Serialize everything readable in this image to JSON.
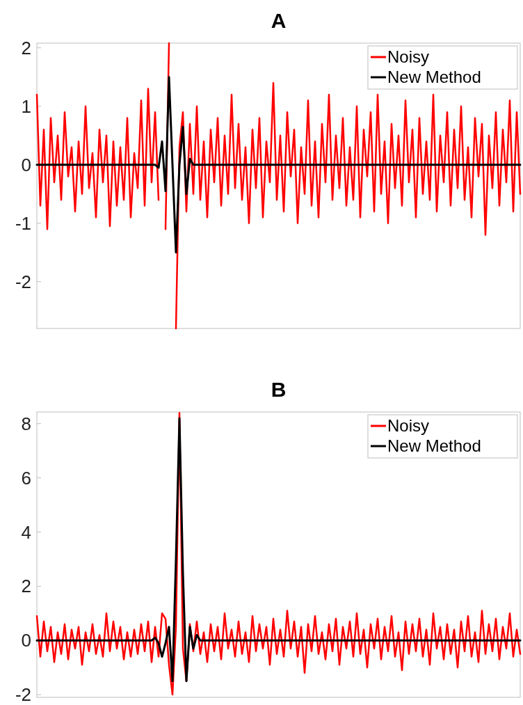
{
  "chart_data": [
    {
      "type": "line",
      "title": "A",
      "categories": [
        null,
        null,
        null,
        null,
        null,
        null,
        null,
        null,
        null,
        null,
        null,
        null,
        null,
        null,
        null,
        null,
        null,
        null,
        null,
        null,
        null,
        null,
        null,
        null,
        null,
        null,
        null,
        null,
        null,
        null,
        null,
        null,
        null,
        null,
        null,
        null,
        null,
        null,
        null,
        null,
        null,
        null,
        null,
        null,
        null,
        null,
        null,
        null,
        null,
        null,
        null,
        null,
        null,
        null,
        null,
        null,
        null,
        null,
        null,
        null,
        null,
        null,
        null,
        null,
        null,
        null,
        null,
        null,
        null,
        null,
        null,
        null,
        null,
        null,
        null,
        null,
        null,
        null,
        null,
        null,
        null,
        null,
        null,
        null,
        null,
        null,
        null,
        null,
        null,
        null,
        null,
        null,
        null,
        null,
        null,
        null,
        null,
        null,
        null,
        null,
        null,
        null,
        null,
        null,
        null,
        null,
        null,
        null,
        null,
        null,
        null,
        null,
        null,
        null,
        null,
        null,
        null,
        null,
        null,
        null,
        null,
        null,
        null,
        null,
        null,
        null,
        null,
        null,
        null,
        null,
        null,
        null,
        null,
        null,
        null,
        null,
        null,
        null,
        null,
        null
      ],
      "series": [
        {
          "name": "Noisy",
          "color": "#ff0000",
          "values": [
            1.2,
            -0.7,
            0.6,
            -1.1,
            0.8,
            -0.3,
            0.5,
            -0.6,
            0.9,
            -0.2,
            0.3,
            -0.8,
            0.4,
            -0.5,
            1.0,
            -0.4,
            0.2,
            -0.9,
            0.6,
            -0.3,
            0.5,
            -1.05,
            0.4,
            -0.7,
            0.3,
            -0.6,
            0.8,
            -0.9,
            0.2,
            -0.4,
            1.1,
            -0.7,
            1.3,
            -0.3,
            0.9,
            -0.6,
            null,
            -1.1,
            2.08,
            null,
            -2.8,
            0.3,
            0.9,
            -0.8,
            0.7,
            -0.5,
            1.0,
            -0.6,
            0.4,
            -0.9,
            0.6,
            -0.3,
            0.8,
            -0.7,
            0.5,
            -0.5,
            1.2,
            -0.4,
            0.7,
            -0.6,
            0.3,
            -1.0,
            0.6,
            -0.4,
            0.8,
            -0.9,
            0.4,
            -0.3,
            1.4,
            -0.6,
            0.5,
            -0.8,
            0.9,
            -0.2,
            0.6,
            -1.0,
            0.3,
            -0.5,
            1.1,
            -0.7,
            0.4,
            -0.9,
            0.7,
            -0.3,
            1.2,
            -0.6,
            0.5,
            -0.4,
            0.8,
            -0.7,
            0.3,
            -0.6,
            1.0,
            -0.9,
            0.6,
            -0.2,
            0.9,
            -0.8,
            1.2,
            -0.5,
            0.4,
            -1.0,
            0.7,
            -0.4,
            0.5,
            -0.7,
            1.1,
            -0.3,
            0.6,
            -0.9,
            0.8,
            -0.5,
            0.4,
            -0.6,
            1.2,
            -0.8,
            0.5,
            -0.3,
            0.9,
            -0.7,
            0.6,
            -0.4,
            1.0,
            -0.6,
            0.3,
            -0.9,
            0.8,
            -0.2,
            0.7,
            -1.2,
            0.5,
            -0.4,
            0.9,
            -0.7,
            0.6,
            -0.3,
            1.1,
            -0.8,
            0.9,
            -0.5
          ]
        },
        {
          "name": "New Method",
          "color": "#000000",
          "values": [
            0,
            0,
            0,
            0,
            0,
            0,
            0,
            0,
            0,
            0,
            0,
            0,
            0,
            0,
            0,
            0,
            0,
            0,
            0,
            0,
            0,
            0,
            0,
            0,
            0,
            0,
            0,
            0,
            0,
            0,
            0,
            0,
            0,
            0,
            0,
            -0.05,
            0.4,
            -0.45,
            1.5,
            0,
            -1.5,
            0,
            0.65,
            -0.5,
            0.1,
            0,
            0,
            0,
            0,
            0,
            0,
            0,
            0,
            0,
            0,
            0,
            0,
            0,
            0,
            0,
            0,
            0,
            0,
            0,
            0,
            0,
            0,
            0,
            0,
            0,
            0,
            0,
            0,
            0,
            0,
            0,
            0,
            0,
            0,
            0,
            0,
            0,
            0,
            0,
            0,
            0,
            0,
            0,
            0,
            0,
            0,
            0,
            0,
            0,
            0,
            0,
            0,
            0,
            0,
            0,
            0,
            0,
            0,
            0,
            0,
            0,
            0,
            0,
            0,
            0,
            0,
            0,
            0,
            0,
            0,
            0,
            0,
            0,
            0,
            0,
            0,
            0,
            0,
            0,
            0,
            0,
            0,
            0,
            0,
            0,
            0,
            0,
            0,
            0,
            0,
            0,
            0,
            0,
            0,
            0
          ]
        }
      ],
      "ylim": [
        -2.8,
        2.08
      ],
      "yticks": [
        -2,
        -1,
        0,
        1,
        2
      ],
      "tick_labels": "y",
      "legend": "top right"
    },
    {
      "type": "line",
      "title": "B",
      "categories": [
        null,
        null,
        null,
        null,
        null,
        null,
        null,
        null,
        null,
        null,
        null,
        null,
        null,
        null,
        null,
        null,
        null,
        null,
        null,
        null,
        null,
        null,
        null,
        null,
        null,
        null,
        null,
        null,
        null,
        null,
        null,
        null,
        null,
        null,
        null,
        null,
        null,
        null,
        null,
        null,
        null,
        null,
        null,
        null,
        null,
        null,
        null,
        null,
        null,
        null,
        null,
        null,
        null,
        null,
        null,
        null,
        null,
        null,
        null,
        null,
        null,
        null,
        null,
        null,
        null,
        null,
        null,
        null,
        null,
        null,
        null,
        null,
        null,
        null,
        null,
        null,
        null,
        null,
        null,
        null,
        null,
        null,
        null,
        null,
        null,
        null,
        null,
        null,
        null,
        null,
        null,
        null,
        null,
        null,
        null,
        null,
        null,
        null,
        null,
        null,
        null,
        null,
        null,
        null,
        null,
        null,
        null,
        null,
        null,
        null,
        null,
        null,
        null,
        null,
        null,
        null,
        null,
        null,
        null,
        null,
        null,
        null,
        null,
        null,
        null,
        null,
        null,
        null,
        null,
        null,
        null,
        null,
        null,
        null,
        null,
        null,
        null,
        null,
        null,
        null
      ],
      "series": [
        {
          "name": "Noisy",
          "color": "#ff0000",
          "values": [
            0.9,
            -0.6,
            0.7,
            -0.4,
            0.5,
            -0.8,
            0.3,
            -0.5,
            0.6,
            -0.7,
            0.4,
            -0.3,
            0.5,
            -0.9,
            0.3,
            -0.4,
            0.6,
            -0.5,
            0.2,
            -0.6,
            1.0,
            -0.4,
            0.7,
            -0.3,
            0.5,
            -0.7,
            0.3,
            -0.6,
            0.4,
            -0.5,
            0.6,
            -0.4,
            0.7,
            -0.8,
            0.5,
            -0.6,
            1.0,
            0.8,
            -0.9,
            -2.0,
            0.5,
            8.4,
            -0.3,
            -1.5,
            0.6,
            -0.4,
            0.7,
            -0.5,
            0.3,
            -0.8,
            0.6,
            -0.4,
            0.5,
            -0.7,
            1.0,
            -0.3,
            0.4,
            -0.6,
            0.7,
            -0.5,
            0.3,
            -0.8,
            0.9,
            -0.4,
            0.6,
            -0.3,
            0.5,
            -0.9,
            0.8,
            -0.5,
            0.4,
            -0.6,
            1.1,
            -0.3,
            0.7,
            -0.6,
            0.5,
            -1.2,
            0.6,
            -0.4,
            0.9,
            -0.5,
            0.3,
            -0.7,
            0.6,
            -0.4,
            0.8,
            -0.9,
            0.5,
            -0.3,
            0.7,
            -0.6,
            1.0,
            -0.5,
            0.4,
            -1.0,
            0.6,
            -0.3,
            0.8,
            -0.7,
            0.5,
            -0.4,
            0.9,
            -0.6,
            0.3,
            -1.1,
            0.7,
            -0.5,
            0.6,
            -0.4,
            0.8,
            -0.6,
            0.4,
            -0.9,
            1.0,
            -0.3,
            0.5,
            -0.7,
            0.6,
            -0.5,
            0.4,
            -1.0,
            0.7,
            -0.4,
            0.9,
            -0.6,
            0.3,
            -0.8,
            1.1,
            -0.5,
            0.6,
            -0.4,
            0.8,
            -0.7,
            0.5,
            -0.3,
            1.0,
            -0.6,
            0.4,
            -0.5
          ]
        },
        {
          "name": "New Method",
          "color": "#000000",
          "values": [
            0,
            0,
            0,
            0,
            0,
            0,
            0,
            0,
            0,
            0,
            0,
            0,
            0,
            0,
            0,
            0,
            0,
            0,
            0,
            0,
            0,
            0,
            0,
            0,
            0,
            0,
            0,
            0,
            0,
            0,
            0,
            0,
            0,
            0,
            0.1,
            -0.1,
            -0.6,
            -0.1,
            0.5,
            -1.5,
            3.0,
            8.2,
            2.5,
            -1.5,
            0.5,
            -0.3,
            0.2,
            0,
            0,
            0,
            0,
            0,
            0,
            0,
            0,
            0,
            0,
            0,
            0,
            0,
            0,
            0,
            0,
            0,
            0,
            0,
            0,
            0,
            0,
            0,
            0,
            0,
            0,
            0,
            0,
            0,
            0,
            0,
            0,
            0,
            0,
            0,
            0,
            0,
            0,
            0,
            0,
            0,
            0,
            0,
            0,
            0,
            0,
            0,
            0,
            0,
            0,
            0,
            0,
            0,
            0,
            0,
            0,
            0,
            0,
            0,
            0,
            0,
            0,
            0,
            0,
            0,
            0,
            0,
            0,
            0,
            0,
            0,
            0,
            0,
            0,
            0,
            0,
            0,
            0,
            0,
            0,
            0,
            0,
            0,
            0,
            0,
            0,
            0,
            0,
            0,
            0,
            0,
            0,
            0
          ]
        }
      ],
      "ylim": [
        -2.1,
        8.43
      ],
      "yticks": [
        -2,
        0,
        2,
        4,
        6,
        8
      ],
      "tick_labels": "y",
      "legend": "top right"
    }
  ]
}
